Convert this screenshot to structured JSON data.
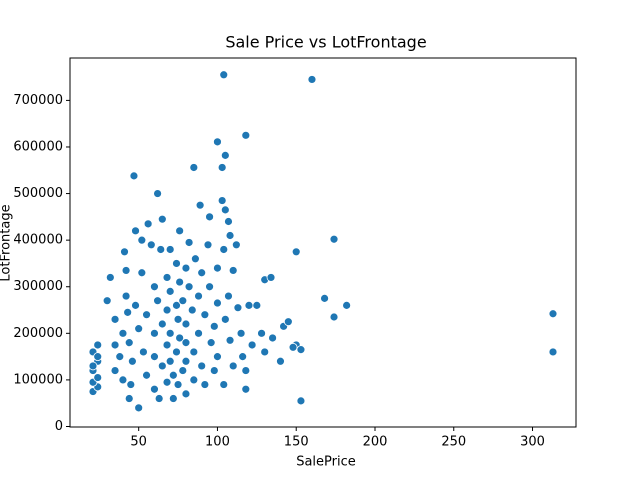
{
  "chart_data": {
    "type": "scatter",
    "title": "Sale Price vs LotFrontage",
    "x_label": "SalePrice",
    "y_label": "LotFrontage",
    "series": [
      {
        "color": "#1f77b4",
        "x": [
          313,
          313,
          160,
          104,
          174,
          182,
          168,
          174,
          150,
          153,
          150,
          153,
          118,
          100,
          105,
          85,
          103,
          47,
          62,
          21,
          24,
          21,
          24,
          21,
          24,
          21,
          24,
          21,
          24,
          30,
          32,
          35,
          35,
          35,
          38,
          40,
          40,
          41,
          42,
          42,
          43,
          44,
          44,
          45,
          46,
          48,
          48,
          50,
          50,
          52,
          52,
          53,
          55,
          55,
          56,
          58,
          60,
          60,
          60,
          60,
          62,
          63,
          64,
          65,
          65,
          65,
          68,
          68,
          68,
          68,
          70,
          70,
          70,
          70,
          72,
          72,
          74,
          74,
          74,
          75,
          75,
          76,
          76,
          76,
          78,
          78,
          80,
          80,
          80,
          80,
          80,
          82,
          82,
          84,
          85,
          85,
          86,
          88,
          88,
          89,
          90,
          90,
          92,
          92,
          94,
          95,
          95,
          96,
          98,
          98,
          100,
          100,
          100,
          103,
          105,
          107,
          104,
          108,
          110,
          107,
          105,
          108,
          104,
          110,
          112,
          113,
          115,
          116,
          118,
          118,
          120,
          122,
          125,
          128,
          130,
          130,
          134,
          135,
          140,
          142,
          145,
          148
        ],
        "y": [
          242000,
          160000,
          745000,
          755000,
          402000,
          260000,
          275000,
          235000,
          375000,
          55000,
          175000,
          165000,
          625000,
          611000,
          582000,
          556000,
          556000,
          538000,
          500000,
          75000,
          85000,
          95000,
          105000,
          120000,
          140000,
          160000,
          175000,
          130000,
          150000,
          270000,
          320000,
          230000,
          175000,
          120000,
          150000,
          200000,
          100000,
          375000,
          335000,
          280000,
          245000,
          180000,
          60000,
          90000,
          140000,
          420000,
          260000,
          210000,
          40000,
          400000,
          330000,
          160000,
          110000,
          240000,
          435000,
          390000,
          300000,
          200000,
          150000,
          80000,
          270000,
          60000,
          380000,
          445000,
          220000,
          130000,
          320000,
          250000,
          175000,
          95000,
          380000,
          290000,
          200000,
          140000,
          110000,
          60000,
          350000,
          260000,
          160000,
          230000,
          90000,
          420000,
          310000,
          190000,
          120000,
          270000,
          340000,
          220000,
          180000,
          140000,
          70000,
          395000,
          300000,
          250000,
          160000,
          100000,
          360000,
          200000,
          280000,
          475000,
          130000,
          330000,
          240000,
          90000,
          390000,
          450000,
          300000,
          180000,
          215000,
          120000,
          340000,
          265000,
          150000,
          485000,
          465000,
          440000,
          380000,
          410000,
          335000,
          280000,
          230000,
          185000,
          90000,
          130000,
          390000,
          255000,
          200000,
          150000,
          80000,
          120000,
          260000,
          175000,
          260000,
          200000,
          315000,
          160000,
          320000,
          190000,
          140000,
          215000,
          225000,
          170000
        ]
      }
    ],
    "xlim": [
      6.4,
      327.6
    ],
    "ylim": [
      -1100,
      791000
    ],
    "xticks": [
      50,
      100,
      150,
      200,
      250,
      300
    ],
    "yticks": [
      0,
      100000,
      200000,
      300000,
      400000,
      500000,
      600000,
      700000
    ]
  }
}
